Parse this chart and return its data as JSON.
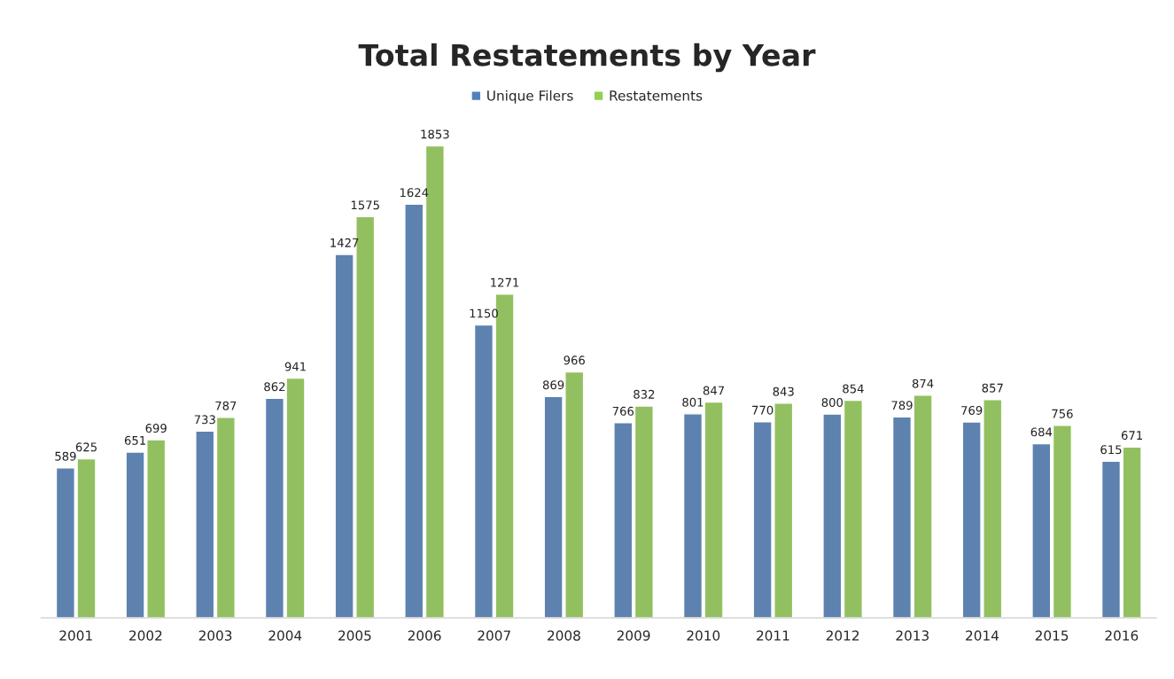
{
  "chart_data": {
    "type": "bar",
    "title": "Total Restatements by Year",
    "categories": [
      "2001",
      "2002",
      "2003",
      "2004",
      "2005",
      "2006",
      "2007",
      "2008",
      "2009",
      "2010",
      "2011",
      "2012",
      "2013",
      "2014",
      "2015",
      "2016"
    ],
    "series": [
      {
        "name": "Unique Filers",
        "color": "#4f81bd",
        "values": [
          589,
          651,
          733,
          862,
          1427,
          1624,
          1150,
          869,
          766,
          801,
          770,
          800,
          789,
          769,
          684,
          615
        ]
      },
      {
        "name": "Restatements",
        "color": "#92d050",
        "values": [
          625,
          699,
          787,
          941,
          1575,
          1853,
          1271,
          966,
          832,
          847,
          843,
          854,
          874,
          857,
          756,
          671
        ]
      }
    ],
    "data_labels": true,
    "legend": "top",
    "grid": false,
    "tick_labels": "x"
  }
}
